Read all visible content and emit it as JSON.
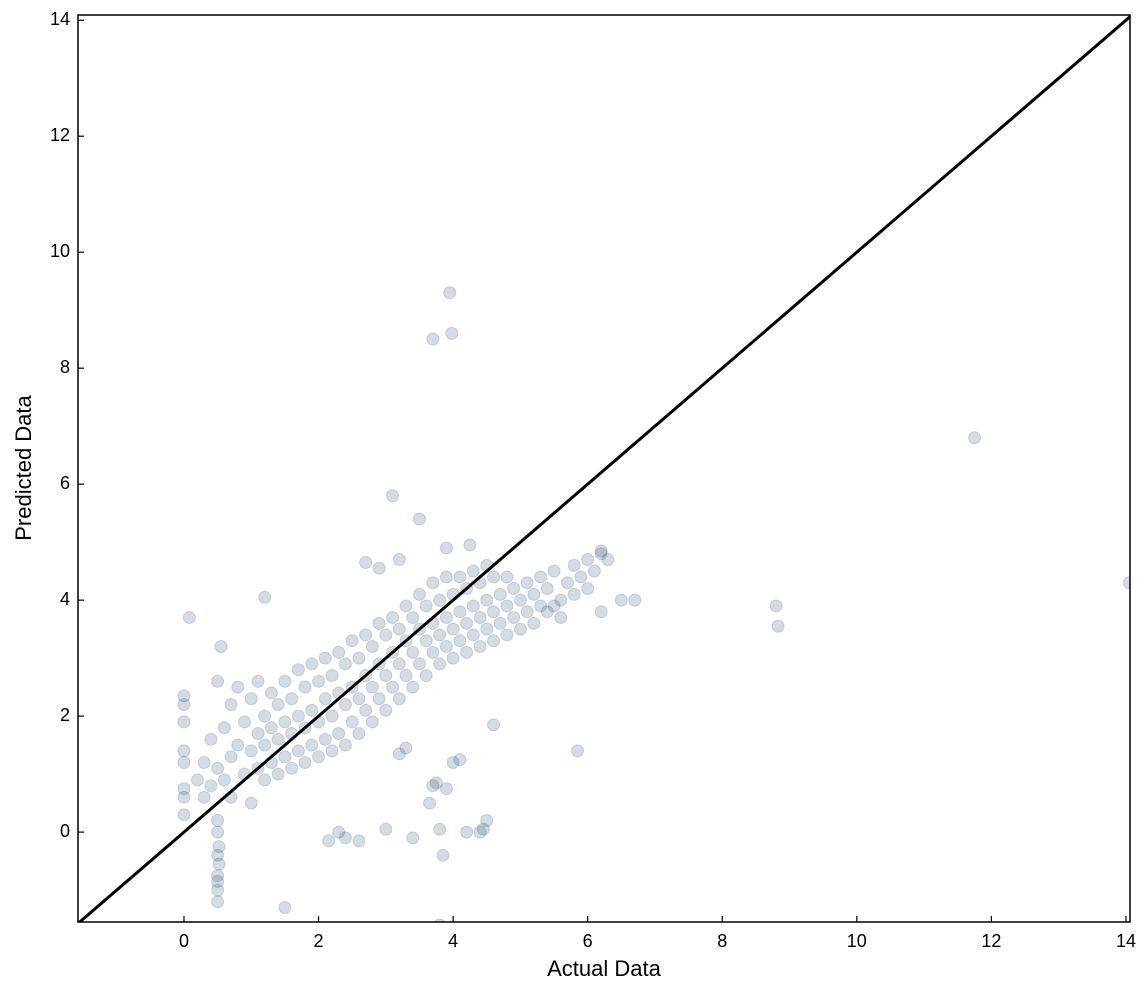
{
  "chart_data": {
    "type": "scatter",
    "xlabel": "Actual Data",
    "ylabel": "Predicted Data",
    "color": "#003057",
    "alpha": 0.17,
    "xlim": [
      -1.575,
      14.06
    ],
    "ylim": [
      -1.55,
      14.09
    ],
    "xticks": [
      0,
      2,
      4,
      6,
      8,
      10,
      12,
      14
    ],
    "yticks": [
      0,
      2,
      4,
      6,
      8,
      10,
      12,
      14
    ],
    "reference_line": {
      "x": [
        -1.6,
        14.1
      ],
      "values": [
        -1.6,
        14.1
      ],
      "color": "#000000"
    },
    "x": [
      3.95,
      3.7,
      3.98,
      11.75,
      8.8,
      8.83,
      14.05,
      3.1,
      3.5,
      5.85,
      1.5,
      3.8,
      2.15,
      2.3,
      2.4,
      2.6,
      3.0,
      3.4,
      3.8,
      3.85,
      4.2,
      4.4,
      4.45,
      4.5,
      0.5,
      0.5,
      0.5,
      0.5,
      0.52,
      0.5,
      0.52,
      0.5,
      0.5,
      0.08,
      1.2,
      0.55,
      6.7,
      6.5,
      6.2,
      4.25,
      3.9,
      2.7,
      3.2,
      2.9,
      0,
      0,
      0,
      0,
      0,
      0,
      0,
      0,
      3.7,
      3.75,
      3.9,
      3.65,
      4.0,
      4.1,
      4.6,
      3.3,
      3.2,
      0.2,
      0.3,
      0.3,
      0.4,
      0.4,
      0.5,
      0.5,
      0.6,
      0.6,
      0.7,
      0.7,
      0.7,
      0.8,
      0.8,
      0.9,
      0.9,
      1.0,
      1.0,
      1.0,
      1.1,
      1.1,
      1.1,
      1.2,
      1.2,
      1.2,
      1.3,
      1.3,
      1.3,
      1.4,
      1.4,
      1.4,
      1.5,
      1.5,
      1.5,
      1.6,
      1.6,
      1.6,
      1.7,
      1.7,
      1.7,
      1.8,
      1.8,
      1.8,
      1.9,
      1.9,
      1.9,
      2.0,
      2.0,
      2.0,
      2.1,
      2.1,
      2.1,
      2.2,
      2.2,
      2.2,
      2.3,
      2.3,
      2.3,
      2.4,
      2.4,
      2.4,
      2.5,
      2.5,
      2.5,
      2.6,
      2.6,
      2.6,
      2.7,
      2.7,
      2.7,
      2.8,
      2.8,
      2.8,
      2.9,
      2.9,
      2.9,
      3.0,
      3.0,
      3.0,
      3.1,
      3.1,
      3.1,
      3.2,
      3.2,
      3.2,
      3.3,
      3.3,
      3.3,
      3.4,
      3.4,
      3.4,
      3.5,
      3.5,
      3.5,
      3.6,
      3.6,
      3.6,
      3.7,
      3.7,
      3.7,
      3.8,
      3.8,
      3.8,
      3.9,
      3.9,
      3.9,
      4.0,
      4.0,
      4.0,
      4.1,
      4.1,
      4.1,
      4.2,
      4.2,
      4.2,
      4.3,
      4.3,
      4.3,
      4.4,
      4.4,
      4.4,
      4.5,
      4.5,
      4.5,
      4.6,
      4.6,
      4.6,
      4.7,
      4.7,
      4.8,
      4.8,
      4.8,
      4.9,
      4.9,
      5.0,
      5.0,
      5.1,
      5.1,
      5.2,
      5.2,
      5.3,
      5.3,
      5.4,
      5.4,
      5.5,
      5.5,
      5.6,
      5.6,
      5.7,
      5.8,
      5.8,
      5.9,
      6.0,
      6.0,
      6.1,
      6.2,
      6.2,
      6.3
    ],
    "values": [
      9.3,
      8.5,
      8.6,
      6.8,
      3.9,
      3.55,
      4.3,
      5.8,
      5.4,
      1.4,
      -1.3,
      -1.6,
      -0.15,
      0,
      -0.1,
      -0.15,
      0.05,
      -0.1,
      0.05,
      -0.4,
      0,
      0,
      0.05,
      0.2,
      -1.2,
      -1.0,
      -0.85,
      -0.75,
      -0.55,
      -0.4,
      -0.25,
      0,
      0.2,
      3.7,
      4.05,
      3.2,
      4.0,
      4.0,
      4.85,
      4.95,
      4.9,
      4.65,
      4.7,
      4.55,
      2.35,
      2.2,
      1.9,
      1.4,
      1.2,
      0.75,
      0.6,
      0.3,
      0.8,
      0.85,
      0.75,
      0.5,
      1.2,
      1.25,
      1.85,
      1.45,
      1.35,
      0.9,
      1.2,
      0.6,
      1.6,
      0.8,
      2.6,
      1.1,
      1.8,
      0.9,
      2.2,
      1.3,
      0.6,
      1.5,
      2.5,
      1.0,
      1.9,
      0.5,
      1.4,
      2.3,
      1.1,
      1.7,
      2.6,
      0.9,
      1.5,
      2.0,
      1.2,
      1.8,
      2.4,
      1.0,
      1.6,
      2.2,
      1.3,
      1.9,
      2.6,
      1.1,
      1.7,
      2.3,
      1.4,
      2.0,
      2.8,
      1.2,
      1.8,
      2.5,
      1.5,
      2.1,
      2.9,
      1.3,
      1.9,
      2.6,
      1.6,
      2.3,
      3.0,
      1.4,
      2.0,
      2.7,
      1.7,
      2.4,
      3.1,
      1.5,
      2.2,
      2.9,
      1.9,
      2.5,
      3.3,
      1.7,
      2.3,
      3.0,
      2.1,
      2.7,
      3.4,
      1.9,
      2.5,
      3.2,
      2.3,
      2.9,
      3.6,
      2.1,
      2.7,
      3.4,
      2.5,
      3.1,
      3.7,
      2.3,
      2.9,
      3.5,
      2.7,
      3.3,
      3.9,
      2.5,
      3.1,
      3.7,
      2.9,
      3.5,
      4.1,
      2.7,
      3.3,
      3.9,
      3.1,
      3.6,
      4.3,
      2.9,
      3.4,
      4.0,
      3.2,
      3.7,
      4.4,
      3.0,
      3.5,
      4.1,
      3.3,
      3.8,
      4.4,
      3.1,
      3.6,
      4.2,
      3.4,
      3.9,
      4.5,
      3.2,
      3.7,
      4.3,
      3.5,
      4.0,
      4.6,
      3.3,
      3.8,
      4.4,
      3.6,
      4.1,
      3.4,
      3.9,
      4.4,
      3.7,
      4.2,
      3.5,
      4.0,
      3.8,
      4.3,
      3.6,
      4.1,
      3.9,
      4.4,
      3.8,
      4.2,
      3.9,
      4.5,
      4.0,
      3.7,
      4.3,
      4.1,
      4.6,
      4.4,
      4.2,
      4.7,
      4.5,
      4.8,
      3.8,
      4.7
    ]
  }
}
